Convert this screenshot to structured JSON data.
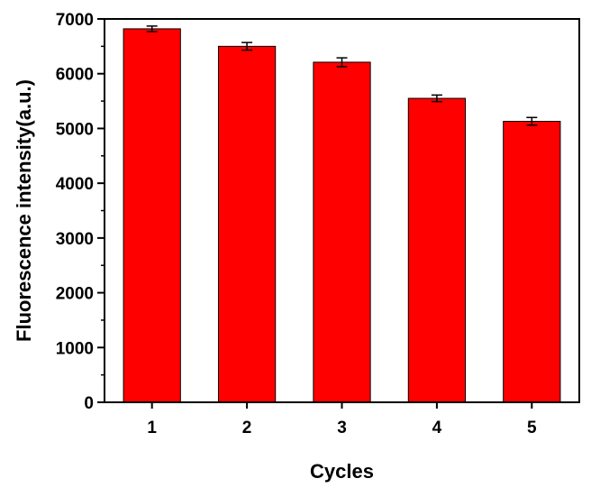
{
  "chart_data": {
    "type": "bar",
    "title": "",
    "xlabel": "Cycles",
    "ylabel": "Fluorescence intensity(a.u.)",
    "categories": [
      "1",
      "2",
      "3",
      "4",
      "5"
    ],
    "values": [
      6820,
      6500,
      6210,
      5550,
      5130
    ],
    "errors": [
      50,
      70,
      80,
      60,
      70
    ],
    "ylim": [
      0,
      7000
    ],
    "yticks": [
      "0",
      "1000",
      "2000",
      "3000",
      "4000",
      "5000",
      "6000",
      "7000"
    ],
    "bar_color": "#ff0000",
    "grid": false,
    "legend": "none"
  }
}
